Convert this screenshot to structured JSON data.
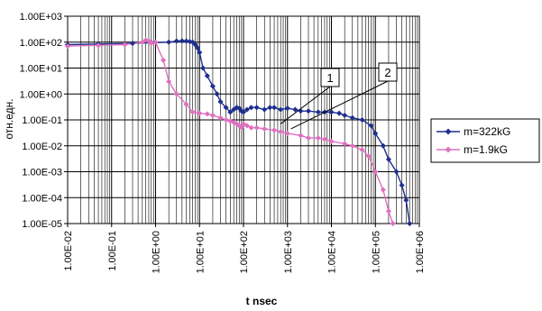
{
  "chart_data": {
    "type": "line",
    "title": "",
    "xlabel": "t nsec",
    "ylabel": "отн.едн.",
    "xscale": "log",
    "yscale": "log",
    "xlim": [
      0.01,
      1000000
    ],
    "ylim": [
      1e-05,
      1000
    ],
    "x_tick_labels": [
      "1.00E-02",
      "1.00E-01",
      "1.00E+00",
      "1.00E+01",
      "1.00E+02",
      "1.00E+03",
      "1.00E+04",
      "1.00E+05",
      "1.00E+06"
    ],
    "y_tick_labels": [
      "1.00E+03",
      "1.00E+02",
      "1.00E+01",
      "1.00E+00",
      "1.00E-01",
      "1.00E-02",
      "1.00E-03",
      "1.00E-04",
      "1.00E-05"
    ],
    "grid": "major and minor",
    "legend_position": "right",
    "series": [
      {
        "name": "m=322kG",
        "color": "#1f2f8f",
        "marker": "diamond",
        "x": [
          0.01,
          0.05,
          0.3,
          0.8,
          2,
          3,
          4,
          5,
          6,
          7,
          8,
          9,
          10,
          12,
          15,
          20,
          25,
          30,
          40,
          50,
          60,
          70,
          80,
          90,
          100,
          120,
          150,
          200,
          300,
          400,
          500,
          700,
          1000,
          1500,
          2000,
          3000,
          5000,
          7000,
          10000,
          15000,
          20000,
          30000,
          50000,
          80000,
          100000,
          150000,
          200000,
          300000,
          400000,
          500000,
          600000
        ],
        "y": [
          80,
          85,
          90,
          95,
          100,
          110,
          112,
          110,
          105,
          100,
          80,
          60,
          40,
          10,
          5,
          2,
          1,
          0.5,
          0.3,
          0.2,
          0.25,
          0.3,
          0.28,
          0.22,
          0.2,
          0.25,
          0.3,
          0.3,
          0.25,
          0.3,
          0.3,
          0.25,
          0.28,
          0.25,
          0.22,
          0.22,
          0.2,
          0.2,
          0.2,
          0.18,
          0.15,
          0.12,
          0.1,
          0.06,
          0.03,
          0.01,
          0.003,
          0.001,
          0.0003,
          8e-05,
          1e-05
        ]
      },
      {
        "name": "m=1.9kG",
        "color": "#e070c0",
        "marker": "diamond",
        "x": [
          0.01,
          0.05,
          0.2,
          0.5,
          0.6,
          0.7,
          0.8,
          1,
          1.5,
          2,
          3,
          5,
          7,
          10,
          15,
          20,
          30,
          40,
          50,
          60,
          70,
          80,
          90,
          100,
          120,
          150,
          200,
          300,
          500,
          700,
          1000,
          2000,
          3000,
          5000,
          7000,
          10000,
          20000,
          30000,
          50000,
          70000,
          100000,
          150000,
          200000,
          250000
        ],
        "y": [
          70,
          75,
          80,
          100,
          120,
          110,
          90,
          100,
          20,
          3,
          1,
          0.4,
          0.2,
          0.18,
          0.17,
          0.15,
          0.12,
          0.1,
          0.09,
          0.08,
          0.07,
          0.06,
          0.05,
          0.07,
          0.06,
          0.05,
          0.05,
          0.045,
          0.04,
          0.035,
          0.03,
          0.025,
          0.02,
          0.02,
          0.018,
          0.015,
          0.012,
          0.01,
          0.007,
          0.004,
          0.001,
          0.0002,
          3e-05,
          1e-05
        ]
      }
    ],
    "annotations": [
      {
        "text": "1",
        "x": 700,
        "y": 0.07
      },
      {
        "text": "2",
        "x": 1200,
        "y": 0.045
      }
    ]
  }
}
